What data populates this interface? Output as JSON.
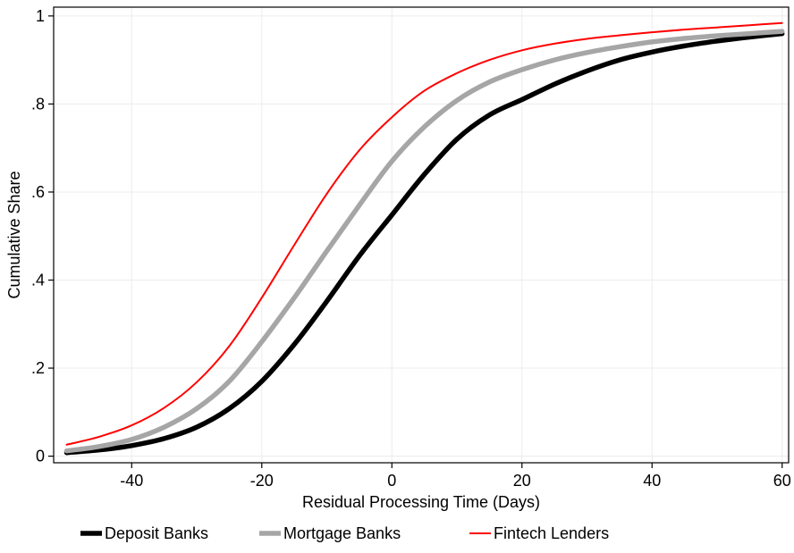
{
  "chart_data": {
    "type": "line",
    "title": "",
    "xlabel": "Residual Processing Time (Days)",
    "ylabel": "Cumulative Share",
    "xlim": [
      -52,
      61
    ],
    "ylim": [
      -0.015,
      1.02
    ],
    "grid": true,
    "legend_position": "bottom",
    "x_ticks": [
      {
        "value": -40,
        "label": "-40"
      },
      {
        "value": -20,
        "label": "-20"
      },
      {
        "value": 0,
        "label": "0"
      },
      {
        "value": 20,
        "label": "20"
      },
      {
        "value": 40,
        "label": "40"
      },
      {
        "value": 60,
        "label": "60"
      }
    ],
    "y_ticks": [
      {
        "value": 0,
        "label": "0"
      },
      {
        "value": 0.2,
        "label": ".2"
      },
      {
        "value": 0.4,
        "label": ".4"
      },
      {
        "value": 0.6,
        "label": ".6"
      },
      {
        "value": 0.8,
        "label": ".8"
      },
      {
        "value": 1,
        "label": "1"
      }
    ],
    "x": [
      -50,
      -45,
      -40,
      -35,
      -30,
      -25,
      -20,
      -15,
      -10,
      -5,
      0,
      5,
      10,
      15,
      20,
      25,
      30,
      35,
      40,
      45,
      50,
      55,
      60
    ],
    "series": [
      {
        "name": "Deposit Banks",
        "color": "#000000",
        "style": "thick",
        "values": [
          0.008,
          0.014,
          0.024,
          0.04,
          0.066,
          0.108,
          0.17,
          0.254,
          0.352,
          0.455,
          0.548,
          0.64,
          0.72,
          0.775,
          0.81,
          0.845,
          0.875,
          0.9,
          0.918,
          0.932,
          0.943,
          0.952,
          0.96
        ]
      },
      {
        "name": "Mortgage Banks",
        "color": "#a6a6a6",
        "style": "thick",
        "values": [
          0.012,
          0.022,
          0.038,
          0.066,
          0.108,
          0.17,
          0.26,
          0.36,
          0.466,
          0.57,
          0.67,
          0.748,
          0.808,
          0.85,
          0.878,
          0.9,
          0.917,
          0.93,
          0.941,
          0.949,
          0.955,
          0.96,
          0.965
        ]
      },
      {
        "name": "Fintech Lenders",
        "color": "#ff0000",
        "style": "thin",
        "values": [
          0.026,
          0.044,
          0.07,
          0.11,
          0.168,
          0.25,
          0.36,
          0.48,
          0.596,
          0.695,
          0.77,
          0.83,
          0.87,
          0.9,
          0.922,
          0.937,
          0.948,
          0.956,
          0.963,
          0.969,
          0.974,
          0.979,
          0.984
        ]
      }
    ]
  }
}
